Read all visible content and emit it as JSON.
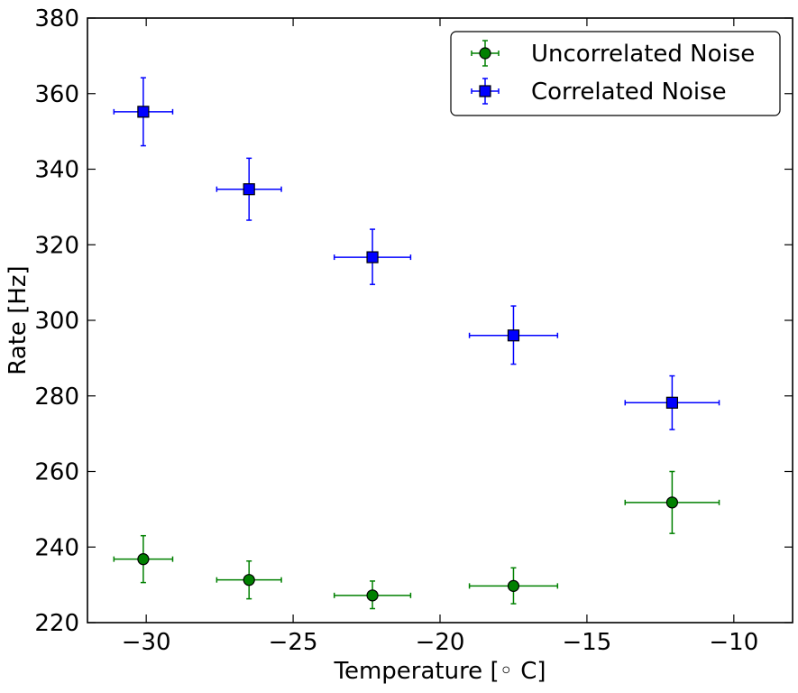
{
  "chart_data": {
    "type": "scatter",
    "xlabel": "Temperature [◦ C]",
    "ylabel": "Rate [Hz]",
    "xlim": [
      -32,
      -8
    ],
    "ylim": [
      220,
      380
    ],
    "xticks": [
      -30,
      -25,
      -20,
      -15,
      -10
    ],
    "xtick_labels": [
      "−30",
      "−25",
      "−20",
      "−15",
      "−10"
    ],
    "yticks": [
      220,
      240,
      260,
      280,
      300,
      320,
      340,
      360,
      380
    ],
    "ytick_labels": [
      "220",
      "240",
      "260",
      "280",
      "300",
      "320",
      "340",
      "360",
      "380"
    ],
    "grid": false,
    "legend_position": "top-right",
    "series": [
      {
        "name": "Uncorrelated Noise",
        "marker": "circle",
        "color": "#008000",
        "edge_color": "#000000",
        "points": [
          {
            "x": -30.1,
            "y": 236.8,
            "xerr": 1.0,
            "yerr_low": 6.2,
            "yerr_high": 6.2
          },
          {
            "x": -26.5,
            "y": 231.3,
            "xerr": 1.1,
            "yerr_low": 5.0,
            "yerr_high": 5.0
          },
          {
            "x": -22.3,
            "y": 227.2,
            "xerr": 1.3,
            "yerr_low": 3.5,
            "yerr_high": 3.8
          },
          {
            "x": -17.5,
            "y": 229.7,
            "xerr": 1.5,
            "yerr_low": 4.7,
            "yerr_high": 4.8
          },
          {
            "x": -12.1,
            "y": 251.8,
            "xerr": 1.6,
            "yerr_low": 8.2,
            "yerr_high": 8.2
          }
        ]
      },
      {
        "name": "Correlated Noise",
        "marker": "square",
        "color": "#0000ff",
        "edge_color": "#000000",
        "points": [
          {
            "x": -30.1,
            "y": 355.2,
            "xerr": 1.0,
            "yerr_low": 9.0,
            "yerr_high": 9.0
          },
          {
            "x": -26.5,
            "y": 334.7,
            "xerr": 1.1,
            "yerr_low": 8.2,
            "yerr_high": 8.2
          },
          {
            "x": -22.3,
            "y": 316.7,
            "xerr": 1.3,
            "yerr_low": 7.2,
            "yerr_high": 7.4
          },
          {
            "x": -17.5,
            "y": 296.0,
            "xerr": 1.5,
            "yerr_low": 7.6,
            "yerr_high": 7.8
          },
          {
            "x": -12.1,
            "y": 278.2,
            "xerr": 1.6,
            "yerr_low": 7.1,
            "yerr_high": 7.1
          }
        ]
      }
    ]
  }
}
